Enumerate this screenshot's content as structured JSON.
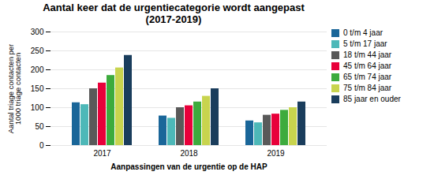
{
  "chart_data": {
    "type": "bar",
    "title": "Aantal keer dat de urgentiecategorie wordt aangepast\n(2017-2019)",
    "xlabel": "Aanpassingen van de urgentie op de HAP",
    "ylabel": "Aantal triage contacten per\n1000 triage contacten",
    "categories": [
      "2017",
      "2018",
      "2019"
    ],
    "series": [
      {
        "name": "0 t/m 4 jaar",
        "color": "#1a6699",
        "values": [
          113,
          78,
          65
        ]
      },
      {
        "name": "5 t/m 17 jaar",
        "color": "#4db8b8",
        "values": [
          108,
          72,
          60
        ]
      },
      {
        "name": "18 t/m 44 jaar",
        "color": "#595959",
        "values": [
          150,
          100,
          80
        ]
      },
      {
        "name": "45 t/m 64 jaar",
        "color": "#e8003a",
        "values": [
          165,
          105,
          83
        ]
      },
      {
        "name": "65 t/m 74 jaar",
        "color": "#3dab3d",
        "values": [
          185,
          115,
          93
        ]
      },
      {
        "name": "75 t/m 84 jaar",
        "color": "#c8d44e",
        "values": [
          205,
          130,
          100
        ]
      },
      {
        "name": "85 jaar en ouder",
        "color": "#1a3d5c",
        "values": [
          238,
          150,
          115
        ]
      }
    ],
    "ylim": [
      0,
      300
    ],
    "yticks": [
      0,
      50,
      100,
      150,
      200,
      250,
      300
    ],
    "grid": true,
    "legend": "right"
  }
}
